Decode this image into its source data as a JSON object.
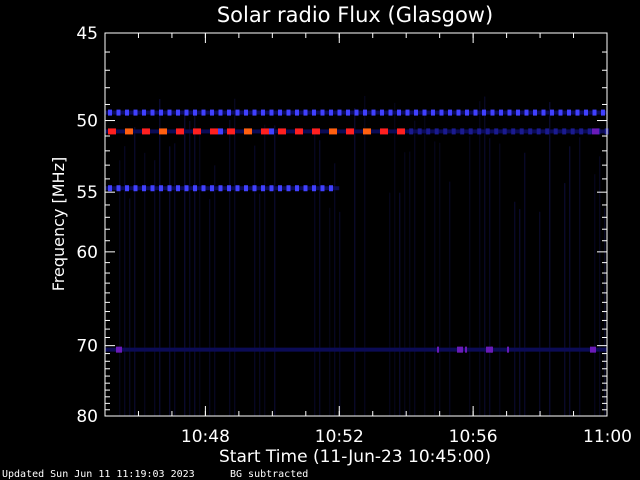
{
  "chart_data": {
    "type": "heatmap",
    "title": "Solar radio Flux (Glasgow)",
    "xlabel": "Start Time (11-Jun-23 10:45:00)",
    "ylabel": "Frequency [MHz]",
    "x_range": [
      "10:45",
      "11:00"
    ],
    "y_range": [
      45,
      80
    ],
    "y_scale": "reciprocal",
    "x_ticks": [
      "10:48",
      "10:52",
      "10:56",
      "11:00"
    ],
    "y_ticks": [
      45,
      50,
      55,
      60,
      70,
      80
    ],
    "grid": false,
    "colors": {
      "background": "#000000",
      "axis": "#ffffff",
      "low": "#1a1a90",
      "mid": "#4040ff",
      "high": "#ff2020",
      "peak": "#ff6010",
      "violet": "#6a1ab8"
    },
    "emission_lanes": [
      {
        "freq_mhz": 49.5,
        "start": "10:45",
        "end": "11:00",
        "level": "mid"
      },
      {
        "freq_mhz": 50.7,
        "start": "10:45",
        "end": "10:54",
        "level": "high"
      },
      {
        "freq_mhz": 50.7,
        "start": "10:54",
        "end": "11:00",
        "level": "low"
      },
      {
        "freq_mhz": 54.7,
        "start": "10:45",
        "end": "10:52",
        "level": "mid"
      },
      {
        "freq_mhz": 70.5,
        "start": "10:45",
        "end": "11:00",
        "level": "violet"
      }
    ]
  },
  "footer": {
    "updated": "Updated Sun Jun 11 11:19:03 2023",
    "note": "BG subtracted"
  }
}
